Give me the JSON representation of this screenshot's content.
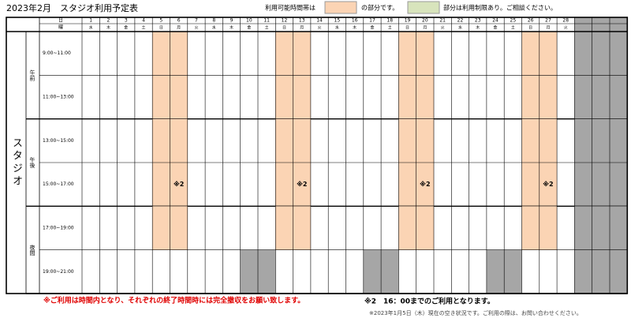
{
  "title": "2023年2月　スタジオ利用予定表",
  "legend": {
    "available_text": "利用可能時間帯は",
    "available_suffix": "の部分です。",
    "restricted_text": "部分は利用制限あり。ご相談ください。"
  },
  "colors": {
    "available": "#fbd4b4",
    "closed": "#a6a6a6",
    "restricted": "#d8e4bc"
  },
  "header": {
    "day_label": "日",
    "weekday_label": "曜"
  },
  "room": "スタジオ",
  "days": [
    {
      "day": 1,
      "weekday": "水"
    },
    {
      "day": 2,
      "weekday": "木"
    },
    {
      "day": 3,
      "weekday": "金"
    },
    {
      "day": 4,
      "weekday": "土"
    },
    {
      "day": 5,
      "weekday": "日"
    },
    {
      "day": 6,
      "weekday": "月"
    },
    {
      "day": 7,
      "weekday": "火"
    },
    {
      "day": 8,
      "weekday": "水"
    },
    {
      "day": 9,
      "weekday": "木"
    },
    {
      "day": 10,
      "weekday": "金"
    },
    {
      "day": 11,
      "weekday": "土"
    },
    {
      "day": 12,
      "weekday": "日"
    },
    {
      "day": 13,
      "weekday": "月"
    },
    {
      "day": 14,
      "weekday": "火"
    },
    {
      "day": 15,
      "weekday": "水"
    },
    {
      "day": 16,
      "weekday": "木"
    },
    {
      "day": 17,
      "weekday": "金"
    },
    {
      "day": 18,
      "weekday": "土"
    },
    {
      "day": 19,
      "weekday": "日"
    },
    {
      "day": 20,
      "weekday": "月"
    },
    {
      "day": 21,
      "weekday": "火"
    },
    {
      "day": 22,
      "weekday": "水"
    },
    {
      "day": 23,
      "weekday": "木"
    },
    {
      "day": 24,
      "weekday": "金"
    },
    {
      "day": 25,
      "weekday": "土"
    },
    {
      "day": 26,
      "weekday": "日"
    },
    {
      "day": 27,
      "weekday": "月"
    },
    {
      "day": 28,
      "weekday": "火"
    }
  ],
  "periods": [
    {
      "label": "午前",
      "slots": [
        {
          "time": "9:00~11:00",
          "cells": [
            null,
            null,
            null,
            null,
            "available",
            "available",
            null,
            null,
            null,
            null,
            null,
            "available",
            "available",
            null,
            null,
            null,
            null,
            null,
            "available",
            "available",
            null,
            null,
            null,
            null,
            null,
            "available",
            "available",
            null
          ]
        },
        {
          "time": "11:00~13:00",
          "cells": [
            null,
            null,
            null,
            null,
            "available",
            "available",
            null,
            null,
            null,
            null,
            null,
            "available",
            "available",
            null,
            null,
            null,
            null,
            null,
            "available",
            "available",
            null,
            null,
            null,
            null,
            null,
            "available",
            "available",
            null
          ]
        }
      ]
    },
    {
      "label": "午後",
      "slots": [
        {
          "time": "13:00~15:00",
          "cells": [
            null,
            null,
            null,
            null,
            "available",
            "available",
            null,
            null,
            null,
            null,
            null,
            "available",
            "available",
            null,
            null,
            null,
            null,
            null,
            "available",
            "available",
            null,
            null,
            null,
            null,
            null,
            "available",
            "available",
            null
          ]
        },
        {
          "time": "15:00~17:00",
          "cells": [
            null,
            null,
            null,
            null,
            "available",
            {
              "status": "available",
              "text": "※2"
            },
            null,
            null,
            null,
            null,
            null,
            "available",
            {
              "status": "available",
              "text": "※2"
            },
            null,
            null,
            null,
            null,
            null,
            "available",
            {
              "status": "available",
              "text": "※2"
            },
            null,
            null,
            null,
            null,
            null,
            "available",
            {
              "status": "available",
              "text": "※2"
            },
            null
          ]
        }
      ]
    },
    {
      "label": "夜間",
      "slots": [
        {
          "time": "17:00~19:00",
          "cells": [
            null,
            null,
            null,
            null,
            "available",
            "available",
            null,
            null,
            null,
            null,
            null,
            "available",
            "available",
            null,
            null,
            null,
            null,
            null,
            "available",
            "available",
            null,
            null,
            null,
            null,
            null,
            "available",
            "available",
            null
          ]
        },
        {
          "time": "19:00~21:00",
          "cells": [
            null,
            null,
            null,
            null,
            null,
            null,
            null,
            null,
            null,
            "closed",
            "closed",
            null,
            null,
            null,
            null,
            null,
            "closed",
            "closed",
            null,
            null,
            null,
            null,
            null,
            "closed",
            "closed",
            null,
            null,
            null
          ]
        }
      ]
    }
  ],
  "notes": {
    "warning": "※ご利用は時間内となり、それぞれの終了時間時には完全撤収をお願い致します。",
    "note2": "※2　16：00までのご利用となります。",
    "status": "※2023年1月5日（木）現在の空き状況です。ご利用の際は、お問い合わせください。"
  }
}
